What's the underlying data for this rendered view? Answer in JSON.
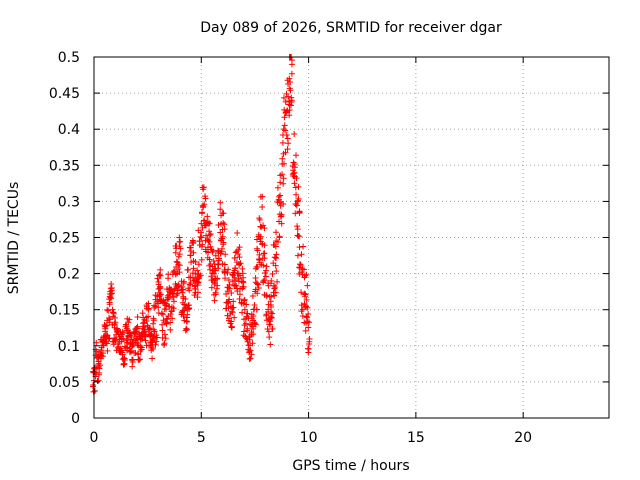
{
  "chart_data": {
    "type": "scatter",
    "title": "Day 089 of 2026, SRMTID for receiver dgar",
    "xlabel": "GPS time / hours",
    "ylabel": "SRMTID / TECUs",
    "xlim": [
      0,
      24
    ],
    "ylim": [
      0,
      0.5
    ],
    "xticks": [
      0,
      5,
      10,
      15,
      20
    ],
    "yticks": [
      0,
      0.05,
      0.1,
      0.15,
      0.2,
      0.25,
      0.3,
      0.35,
      0.4,
      0.45,
      0.5
    ],
    "grid": true,
    "marker": "+",
    "color": "#ff0000",
    "series": [
      {
        "name": "dgar",
        "x": [
          0.0,
          0.1,
          0.2,
          0.3,
          0.4,
          0.5,
          0.6,
          0.7,
          0.8,
          0.9,
          1.0,
          1.1,
          1.2,
          1.3,
          1.4,
          1.5,
          1.6,
          1.7,
          1.8,
          1.9,
          2.0,
          2.1,
          2.2,
          2.3,
          2.4,
          2.5,
          2.6,
          2.7,
          2.8,
          2.9,
          3.0,
          3.1,
          3.2,
          3.3,
          3.4,
          3.5,
          3.6,
          3.7,
          3.8,
          3.9,
          4.0,
          4.1,
          4.2,
          4.3,
          4.4,
          4.5,
          4.6,
          4.7,
          4.8,
          4.9,
          5.0,
          5.1,
          5.2,
          5.3,
          5.4,
          5.5,
          5.6,
          5.7,
          5.8,
          5.9,
          6.0,
          6.1,
          6.2,
          6.3,
          6.4,
          6.5,
          6.6,
          6.7,
          6.8,
          6.9,
          7.0,
          7.1,
          7.2,
          7.3,
          7.4,
          7.5,
          7.6,
          7.7,
          7.8,
          7.9,
          8.0,
          8.1,
          8.2,
          8.3,
          8.4,
          8.5,
          8.6,
          8.7,
          8.8,
          8.9,
          9.0,
          9.1,
          9.2,
          9.3,
          9.4,
          9.5,
          9.6,
          9.7,
          9.8,
          9.9,
          10.0
        ],
        "y": [
          0.05,
          0.08,
          0.07,
          0.09,
          0.1,
          0.11,
          0.12,
          0.14,
          0.17,
          0.13,
          0.12,
          0.11,
          0.1,
          0.1,
          0.09,
          0.11,
          0.12,
          0.1,
          0.09,
          0.11,
          0.12,
          0.1,
          0.11,
          0.13,
          0.12,
          0.14,
          0.11,
          0.1,
          0.13,
          0.15,
          0.16,
          0.18,
          0.14,
          0.13,
          0.16,
          0.17,
          0.15,
          0.18,
          0.2,
          0.19,
          0.21,
          0.17,
          0.16,
          0.15,
          0.18,
          0.21,
          0.22,
          0.2,
          0.19,
          0.22,
          0.24,
          0.29,
          0.27,
          0.25,
          0.23,
          0.21,
          0.19,
          0.2,
          0.24,
          0.26,
          0.25,
          0.23,
          0.18,
          0.16,
          0.15,
          0.17,
          0.19,
          0.21,
          0.2,
          0.18,
          0.15,
          0.13,
          0.12,
          0.11,
          0.14,
          0.17,
          0.2,
          0.23,
          0.26,
          0.22,
          0.19,
          0.15,
          0.13,
          0.16,
          0.19,
          0.22,
          0.27,
          0.3,
          0.35,
          0.39,
          0.43,
          0.46,
          0.48,
          0.37,
          0.33,
          0.28,
          0.24,
          0.19,
          0.17,
          0.16,
          0.12
        ],
        "y_spread": [
          0.02,
          0.03,
          0.02,
          0.02,
          0.02,
          0.02,
          0.03,
          0.03,
          0.02,
          0.03,
          0.02,
          0.02,
          0.02,
          0.02,
          0.02,
          0.02,
          0.02,
          0.02,
          0.02,
          0.02,
          0.02,
          0.02,
          0.02,
          0.02,
          0.02,
          0.02,
          0.02,
          0.02,
          0.03,
          0.05,
          0.04,
          0.03,
          0.03,
          0.03,
          0.03,
          0.03,
          0.03,
          0.03,
          0.04,
          0.03,
          0.04,
          0.03,
          0.03,
          0.03,
          0.03,
          0.03,
          0.04,
          0.03,
          0.03,
          0.04,
          0.05,
          0.03,
          0.04,
          0.04,
          0.04,
          0.03,
          0.03,
          0.03,
          0.04,
          0.04,
          0.04,
          0.04,
          0.04,
          0.04,
          0.03,
          0.04,
          0.04,
          0.05,
          0.04,
          0.04,
          0.04,
          0.03,
          0.03,
          0.03,
          0.04,
          0.05,
          0.05,
          0.05,
          0.05,
          0.05,
          0.05,
          0.04,
          0.04,
          0.04,
          0.05,
          0.05,
          0.05,
          0.05,
          0.06,
          0.06,
          0.06,
          0.05,
          0.05,
          0.06,
          0.06,
          0.06,
          0.05,
          0.05,
          0.04,
          0.04,
          0.03
        ]
      }
    ]
  }
}
